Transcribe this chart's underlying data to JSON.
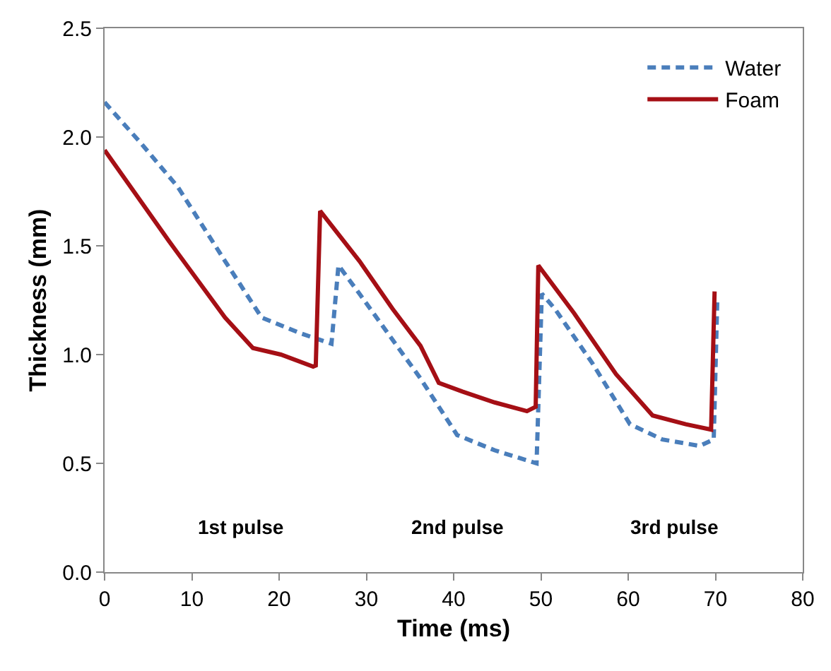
{
  "chart_data": {
    "type": "line",
    "xlabel": "Time (ms)",
    "ylabel": "Thickness (mm)",
    "xlim": [
      0,
      80
    ],
    "xticks": [
      0,
      10,
      20,
      30,
      40,
      50,
      60,
      70,
      80
    ],
    "ylim": [
      0,
      2.5
    ],
    "yticks": [
      {
        "value": 0,
        "label": "0.0"
      },
      {
        "value": 0.5,
        "label": "0.5"
      },
      {
        "value": 1,
        "label": "1.0"
      },
      {
        "value": 1.5,
        "label": "1.5"
      },
      {
        "value": 2,
        "label": "2.0"
      },
      {
        "value": 2.5,
        "label": "2.5"
      }
    ],
    "legend": "top right",
    "marker": "none",
    "series": [
      {
        "name": "Water",
        "color": "#4a7ebb",
        "line_style": "dashed",
        "x": [
          0,
          4.2,
          8.4,
          13.8,
          18.0,
          22.3,
          24.5,
          26.0,
          26.8,
          29.2,
          36.2,
          40.4,
          44.7,
          49.5,
          50.1,
          51.6,
          55.9,
          60.2,
          63.9,
          68.2,
          69.8,
          70.2
        ],
        "values": [
          2.16,
          1.97,
          1.77,
          1.43,
          1.17,
          1.1,
          1.07,
          1.05,
          1.41,
          1.28,
          0.89,
          0.63,
          0.56,
          0.5,
          1.28,
          1.21,
          0.96,
          0.68,
          0.61,
          0.58,
          0.61,
          1.24
        ]
      },
      {
        "name": "Foam",
        "color": "#a50f15",
        "line_style": "solid",
        "x": [
          0,
          7.4,
          13.8,
          17.0,
          20.2,
          23.9,
          24.2,
          24.7,
          29.2,
          33.0,
          36.2,
          38.3,
          41.0,
          44.7,
          48.4,
          49.4,
          49.7,
          53.8,
          58.6,
          62.8,
          66.6,
          69.5,
          69.9
        ],
        "values": [
          1.94,
          1.52,
          1.17,
          1.03,
          1.0,
          0.945,
          0.95,
          1.66,
          1.43,
          1.21,
          1.04,
          0.87,
          0.83,
          0.78,
          0.74,
          0.76,
          1.41,
          1.19,
          0.91,
          0.72,
          0.68,
          0.655,
          1.29
        ]
      }
    ],
    "annotations": [
      "1st pulse",
      "2nd pulse",
      "3rd pulse"
    ]
  }
}
